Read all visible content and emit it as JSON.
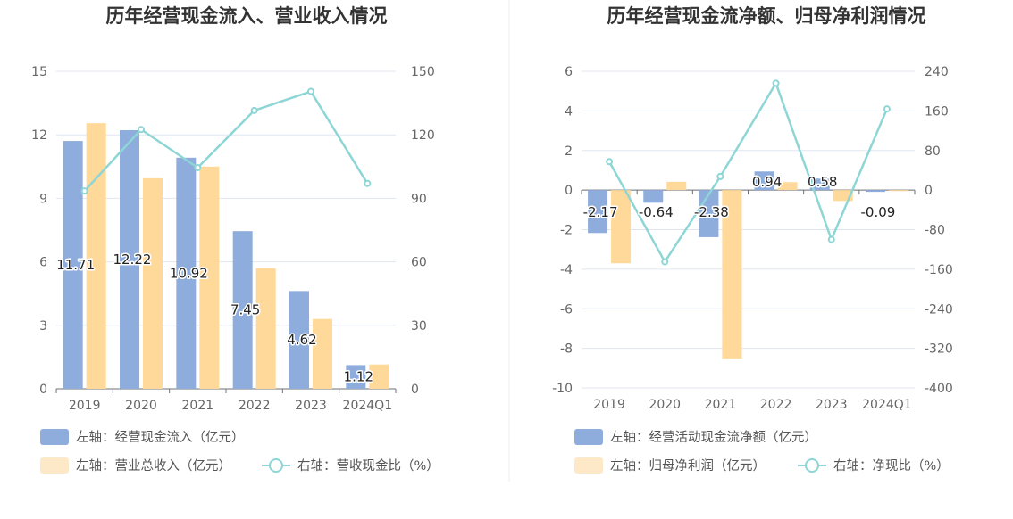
{
  "chart_data": [
    {
      "type": "bar",
      "title": "历年经营现金流入、营业收入情况",
      "categories": [
        "2019",
        "2020",
        "2021",
        "2022",
        "2023",
        "2024Q1"
      ],
      "y_left": {
        "min": 0,
        "max": 15,
        "ticks": [
          "0",
          "3",
          "6",
          "9",
          "12",
          "15"
        ]
      },
      "y_right": {
        "min": 0,
        "max": 150,
        "ticks": [
          "0",
          "30",
          "60",
          "90",
          "120",
          "150"
        ]
      },
      "grid": true,
      "legend_position": "bottom",
      "series": [
        {
          "name": "左轴：经营现金流入（亿元）",
          "kind": "bar",
          "axis": "left",
          "color": "#8eaddc",
          "values": [
            11.71,
            12.22,
            10.92,
            7.45,
            4.62,
            1.12
          ],
          "labels": [
            "11.71",
            "12.22",
            "10.92",
            "7.45",
            "4.62",
            "1.12"
          ]
        },
        {
          "name": "左轴：营业总收入（亿元）",
          "kind": "bar",
          "axis": "left",
          "color": "#ffd99a",
          "values": [
            12.55,
            9.95,
            10.5,
            5.7,
            3.3,
            1.15
          ]
        },
        {
          "name": "右轴：营收现金比（%）",
          "kind": "line",
          "axis": "right",
          "color": "#8ed6d6",
          "values": [
            93.5,
            122.5,
            104.5,
            131.5,
            140.5,
            97.0
          ]
        }
      ]
    },
    {
      "type": "bar",
      "title": "历年经营现金流净额、归母净利润情况",
      "categories": [
        "2019",
        "2020",
        "2021",
        "2022",
        "2023",
        "2024Q1"
      ],
      "y_left": {
        "min": -10,
        "max": 6,
        "ticks": [
          "-10",
          "-8",
          "-6",
          "-4",
          "-2",
          "0",
          "2",
          "4",
          "6"
        ]
      },
      "y_right": {
        "min": -400,
        "max": 240,
        "ticks": [
          "-400",
          "-320",
          "-240",
          "-160",
          "-80",
          "0",
          "80",
          "160",
          "240"
        ]
      },
      "grid": true,
      "legend_position": "bottom",
      "series": [
        {
          "name": "左轴：经营活动现金流净额（亿元）",
          "kind": "bar",
          "axis": "left",
          "color": "#8eaddc",
          "values": [
            -2.17,
            -0.64,
            -2.38,
            0.94,
            0.58,
            -0.09
          ],
          "labels": [
            "-2.17",
            "-0.64",
            "-2.38",
            "0.94",
            "0.58",
            "-0.09"
          ]
        },
        {
          "name": "左轴：归母净利润（亿元）",
          "kind": "bar",
          "axis": "left",
          "color": "#ffd99a",
          "values": [
            -3.7,
            0.42,
            -8.55,
            0.4,
            -0.55,
            -0.05
          ]
        },
        {
          "name": "右轴：净现比（%）",
          "kind": "line",
          "axis": "right",
          "color": "#8ed6d6",
          "values": [
            57.5,
            -145.0,
            27.5,
            216.0,
            -100.0,
            164.0
          ]
        }
      ]
    }
  ]
}
